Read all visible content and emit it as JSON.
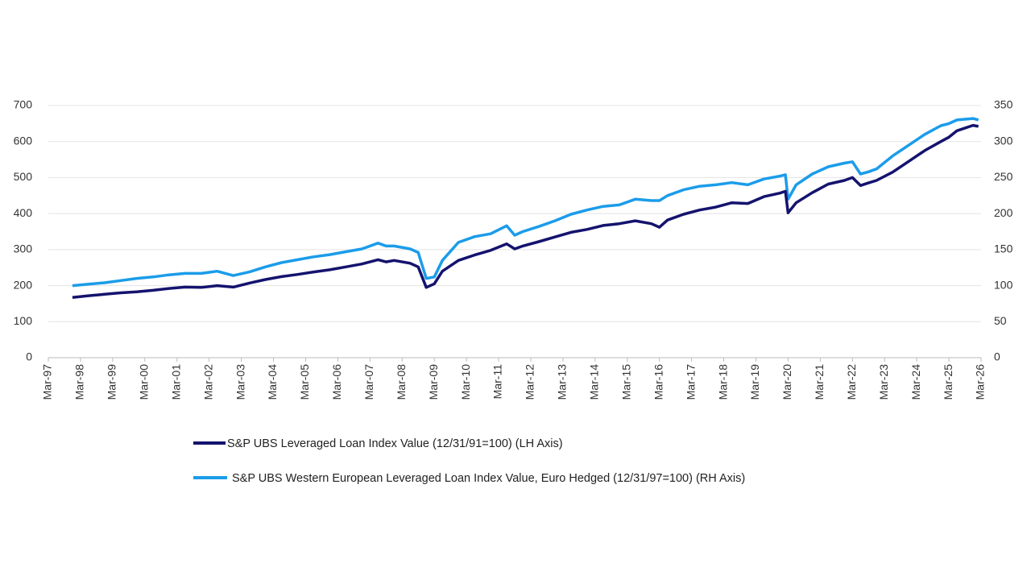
{
  "chart_data": {
    "type": "line",
    "x": [
      "Dec-97",
      "Jun-98",
      "Dec-98",
      "Jun-99",
      "Dec-99",
      "Jun-00",
      "Dec-00",
      "Jun-01",
      "Dec-01",
      "Jun-02",
      "Dec-02",
      "Jun-03",
      "Dec-03",
      "Jun-04",
      "Dec-04",
      "Jun-05",
      "Dec-05",
      "Jun-06",
      "Dec-06",
      "Jun-07",
      "Sep-07",
      "Dec-07",
      "Jun-08",
      "Sep-08",
      "Dec-08",
      "Mar-09",
      "Jun-09",
      "Dec-09",
      "Jun-10",
      "Dec-10",
      "Jun-11",
      "Sep-11",
      "Dec-11",
      "Jun-12",
      "Dec-12",
      "Jun-13",
      "Dec-13",
      "Jun-14",
      "Dec-14",
      "Jun-15",
      "Dec-15",
      "Mar-16",
      "Jun-16",
      "Dec-16",
      "Jun-17",
      "Dec-17",
      "Jun-18",
      "Dec-18",
      "Jun-19",
      "Dec-19",
      "Feb-20",
      "Mar-20",
      "Jun-20",
      "Dec-20",
      "Jun-21",
      "Dec-21",
      "Mar-22",
      "Jun-22",
      "Sep-22",
      "Dec-22",
      "Jun-23",
      "Dec-23",
      "Jun-24",
      "Dec-24",
      "Mar-25",
      "Jun-25",
      "Dec-25",
      "Feb-26"
    ],
    "series": [
      {
        "name": "S&P UBS Leveraged Loan Index Value (12/31/91=100) (LH Axis)",
        "color": "#14136e",
        "axis": "y",
        "values": [
          167,
          172,
          176,
          180,
          183,
          187,
          192,
          196,
          195,
          200,
          196,
          207,
          217,
          225,
          231,
          238,
          244,
          252,
          260,
          272,
          266,
          270,
          262,
          252,
          195,
          205,
          240,
          270,
          285,
          298,
          316,
          302,
          310,
          322,
          335,
          348,
          356,
          367,
          372,
          380,
          372,
          362,
          382,
          398,
          410,
          418,
          430,
          428,
          447,
          457,
          462,
          402,
          430,
          458,
          482,
          492,
          500,
          478,
          485,
          492,
          515,
          545,
          575,
          600,
          612,
          630,
          645,
          642
        ]
      },
      {
        "name": "S&P UBS Western European Leveraged Loan Index Value, Euro Hedged (12/31/97=100) (RH Axis)",
        "color": "#1b9cea",
        "axis": "y2",
        "values": [
          100,
          102,
          104,
          107,
          110,
          112,
          115,
          117,
          117,
          120,
          114,
          119,
          126,
          132,
          136,
          140,
          143,
          147,
          151,
          159,
          155,
          155,
          151,
          146,
          110,
          112,
          135,
          160,
          168,
          172,
          183,
          170,
          175,
          182,
          190,
          199,
          205,
          210,
          212,
          220,
          218,
          218,
          225,
          233,
          238,
          240,
          243,
          240,
          248,
          252,
          254,
          220,
          240,
          255,
          265,
          270,
          272,
          255,
          258,
          262,
          280,
          295,
          310,
          322,
          325,
          330,
          332,
          330
        ]
      }
    ],
    "xlim": [
      "Mar-97",
      "Mar-26"
    ],
    "xticks": [
      "Mar-97",
      "Mar-98",
      "Mar-99",
      "Mar-00",
      "Mar-01",
      "Mar-02",
      "Mar-03",
      "Mar-04",
      "Mar-05",
      "Mar-06",
      "Mar-07",
      "Mar-08",
      "Mar-09",
      "Mar-10",
      "Mar-11",
      "Mar-12",
      "Mar-13",
      "Mar-14",
      "Mar-15",
      "Mar-16",
      "Mar-17",
      "Mar-18",
      "Mar-19",
      "Mar-20",
      "Mar-21",
      "Mar-22",
      "Mar-23",
      "Mar-24",
      "Mar-25",
      "Mar-26"
    ],
    "ylim": [
      0,
      700
    ],
    "yticks": [
      0,
      100,
      200,
      300,
      400,
      500,
      600,
      700
    ],
    "y2lim": [
      0,
      350
    ],
    "y2ticks": [
      0,
      50,
      100,
      150,
      200,
      250,
      300,
      350
    ],
    "grid": true
  }
}
